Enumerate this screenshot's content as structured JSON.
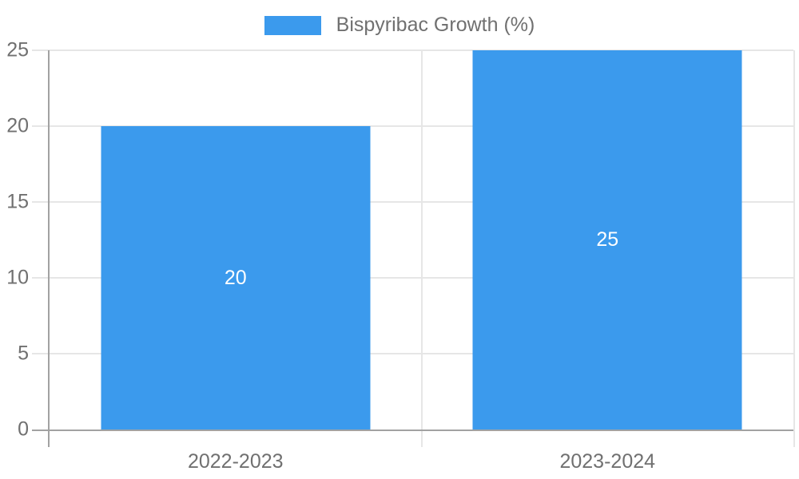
{
  "chart_data": {
    "type": "bar",
    "title": "",
    "categories": [
      "2022-2023",
      "2023-2024"
    ],
    "series": [
      {
        "name": "Bispyribac Growth (%)",
        "values": [
          20,
          25
        ]
      }
    ],
    "data_labels": [
      "20",
      "25"
    ],
    "xlabel": "",
    "ylabel": "",
    "ylim": [
      0,
      25
    ],
    "ytick_step": 5,
    "yticks": [
      "25",
      "20",
      "15",
      "10",
      "5",
      "0"
    ],
    "grid": true,
    "legend_position": "top-center",
    "colors": {
      "bar": "#3b9aed",
      "text": "#707070",
      "axis_line": "#a2a2a2",
      "gridline": "#e6e6e6",
      "data_label": "#ffffff",
      "background": "#ffffff"
    }
  },
  "legend": {
    "label": "Bispyribac Growth (%)"
  },
  "y_axis": {
    "ticks": [
      "25",
      "20",
      "15",
      "10",
      "5",
      "0"
    ]
  },
  "x_axis": {
    "labels": [
      "2022-2023",
      "2023-2024"
    ]
  },
  "bars": [
    {
      "category": "2022-2023",
      "value": 20,
      "label": "20"
    },
    {
      "category": "2023-2024",
      "value": 25,
      "label": "25"
    }
  ]
}
